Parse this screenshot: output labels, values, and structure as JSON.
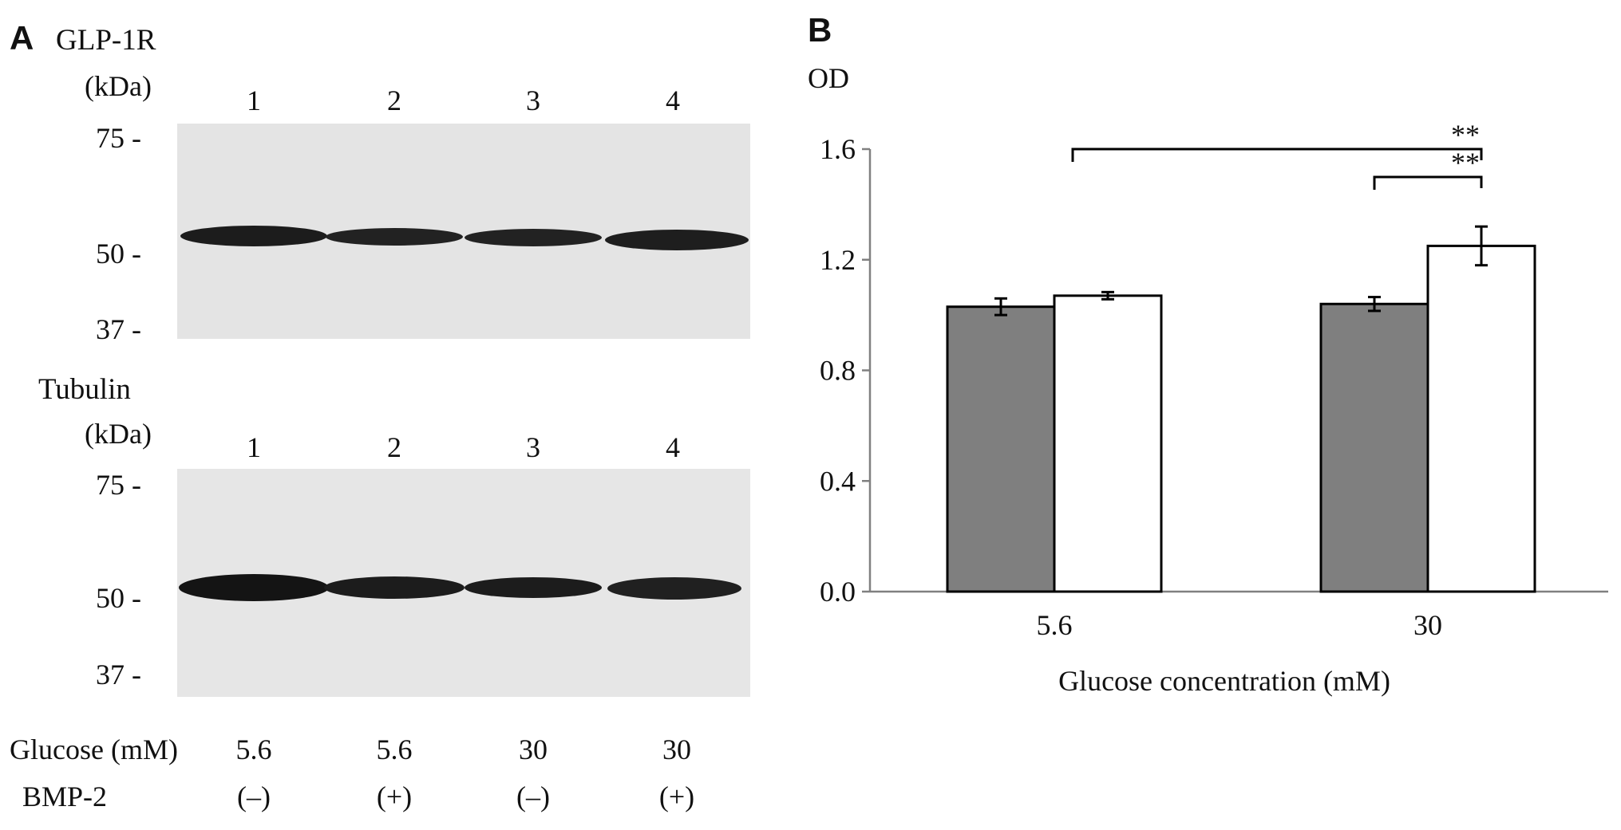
{
  "panel_a": {
    "panel_letter": "A",
    "blot_top": {
      "protein": "GLP-1R",
      "kda_label": "(kDa)",
      "lanes": [
        "1",
        "2",
        "3",
        "4"
      ],
      "markers": [
        "75 -",
        "50 -",
        "37 -"
      ]
    },
    "blot_bottom": {
      "protein": "Tubulin",
      "kda_label": "(kDa)",
      "lanes": [
        "1",
        "2",
        "3",
        "4"
      ],
      "markers": [
        "75 -",
        "50 -",
        "37 -"
      ]
    },
    "conditions": {
      "glucose_label": "Glucose (mM)",
      "glucose_values": [
        "5.6",
        "5.6",
        "30",
        "30"
      ],
      "bmp_label": "BMP-2",
      "bmp_values": [
        "(–)",
        "(+)",
        "(–)",
        "(+)"
      ]
    }
  },
  "panel_b": {
    "panel_letter": "B"
  },
  "chart_data": {
    "type": "bar",
    "ylabel": "OD",
    "xlabel": "Glucose concentration (mM)",
    "categories": [
      "5.6",
      "30"
    ],
    "ylim": [
      0,
      1.6
    ],
    "yticks": [
      "0.0",
      "0.4",
      "0.8",
      "1.2",
      "1.6"
    ],
    "grid": false,
    "series": [
      {
        "values": [
          1.03,
          1.04
        ],
        "errors": [
          0.03,
          0.025
        ],
        "color": "#7f7f7f"
      },
      {
        "values": [
          1.07,
          1.25
        ],
        "errors": [
          0.013,
          0.07
        ],
        "color": "#ffffff"
      }
    ],
    "significance": [
      "**",
      "**"
    ]
  }
}
